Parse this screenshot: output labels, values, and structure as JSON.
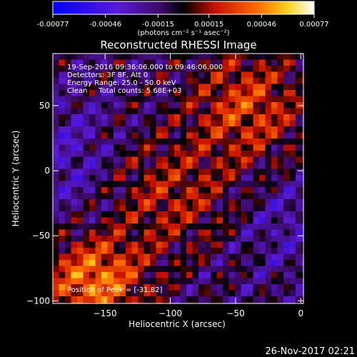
{
  "colorbar": {
    "tick_labels": [
      "-0.00077",
      "-0.00046",
      "-0.00015",
      "0.00015",
      "0.00046",
      "0.00077"
    ],
    "tick_values": [
      -0.00077,
      -0.00046,
      -0.00015,
      0.00015,
      0.00046,
      0.00077
    ],
    "range": [
      -0.00077,
      0.00077
    ],
    "unit_label": "(photons cm⁻² s⁻¹ asec⁻²)"
  },
  "chart_data": {
    "type": "heatmap",
    "title": "Reconstructed RHESSI Image",
    "xlabel": "Heliocentric X (arcsec)",
    "ylabel": "Heliocentric Y (arcsec)",
    "xlim": [
      -190,
      2
    ],
    "ylim": [
      -102,
      90
    ],
    "x_ticks": [
      -150,
      -100,
      -50,
      0
    ],
    "x_tick_labels": [
      "−150",
      "−100",
      "−50",
      "0"
    ],
    "y_ticks": [
      -100,
      -50,
      0,
      50
    ],
    "y_tick_labels": [
      "−100",
      "−50",
      "0",
      "50"
    ],
    "colormap": "blue-purple-black-red-orange-yellow-white",
    "annotations": [
      "19-Sep-2016 09:36:06.000 to 09:46:06.000",
      "Detectors: 3F 8F, Att 0",
      "Energy Range: 25.0 - 50.0 keV",
      "Clean     Total counts: 5.68E+03"
    ],
    "peak_label": "Position of Peak = [-31,82]",
    "peak_position": [
      -31,
      82
    ],
    "total_counts": 5680,
    "energy_range_keV": [
      25.0,
      50.0
    ]
  },
  "footer": {
    "timestamp": "26-Nov-2017 02:21"
  }
}
